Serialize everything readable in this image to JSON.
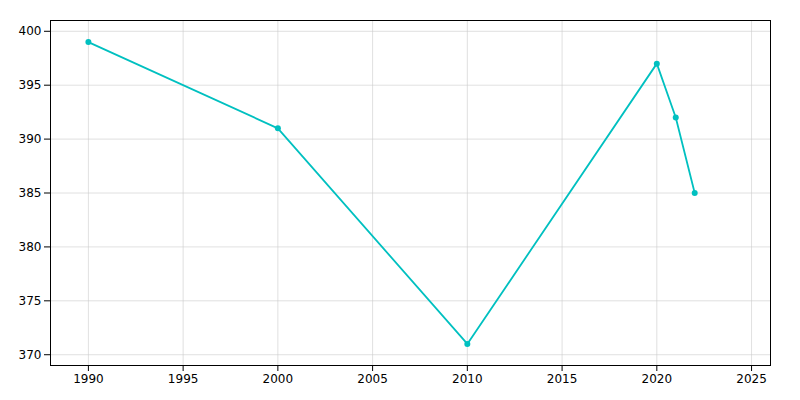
{
  "chart_data": {
    "type": "line",
    "x": [
      1990,
      2000,
      2010,
      2020,
      2021,
      2022
    ],
    "values": [
      399,
      391,
      371,
      397,
      392,
      385
    ],
    "color": "#00C0C0",
    "marker": "circle",
    "xlim": [
      1988,
      2026
    ],
    "ylim": [
      369,
      401
    ],
    "xticks": [
      1990,
      1995,
      2000,
      2005,
      2010,
      2015,
      2020,
      2025
    ],
    "yticks": [
      370,
      375,
      380,
      385,
      390,
      395,
      400
    ],
    "grid": true
  }
}
